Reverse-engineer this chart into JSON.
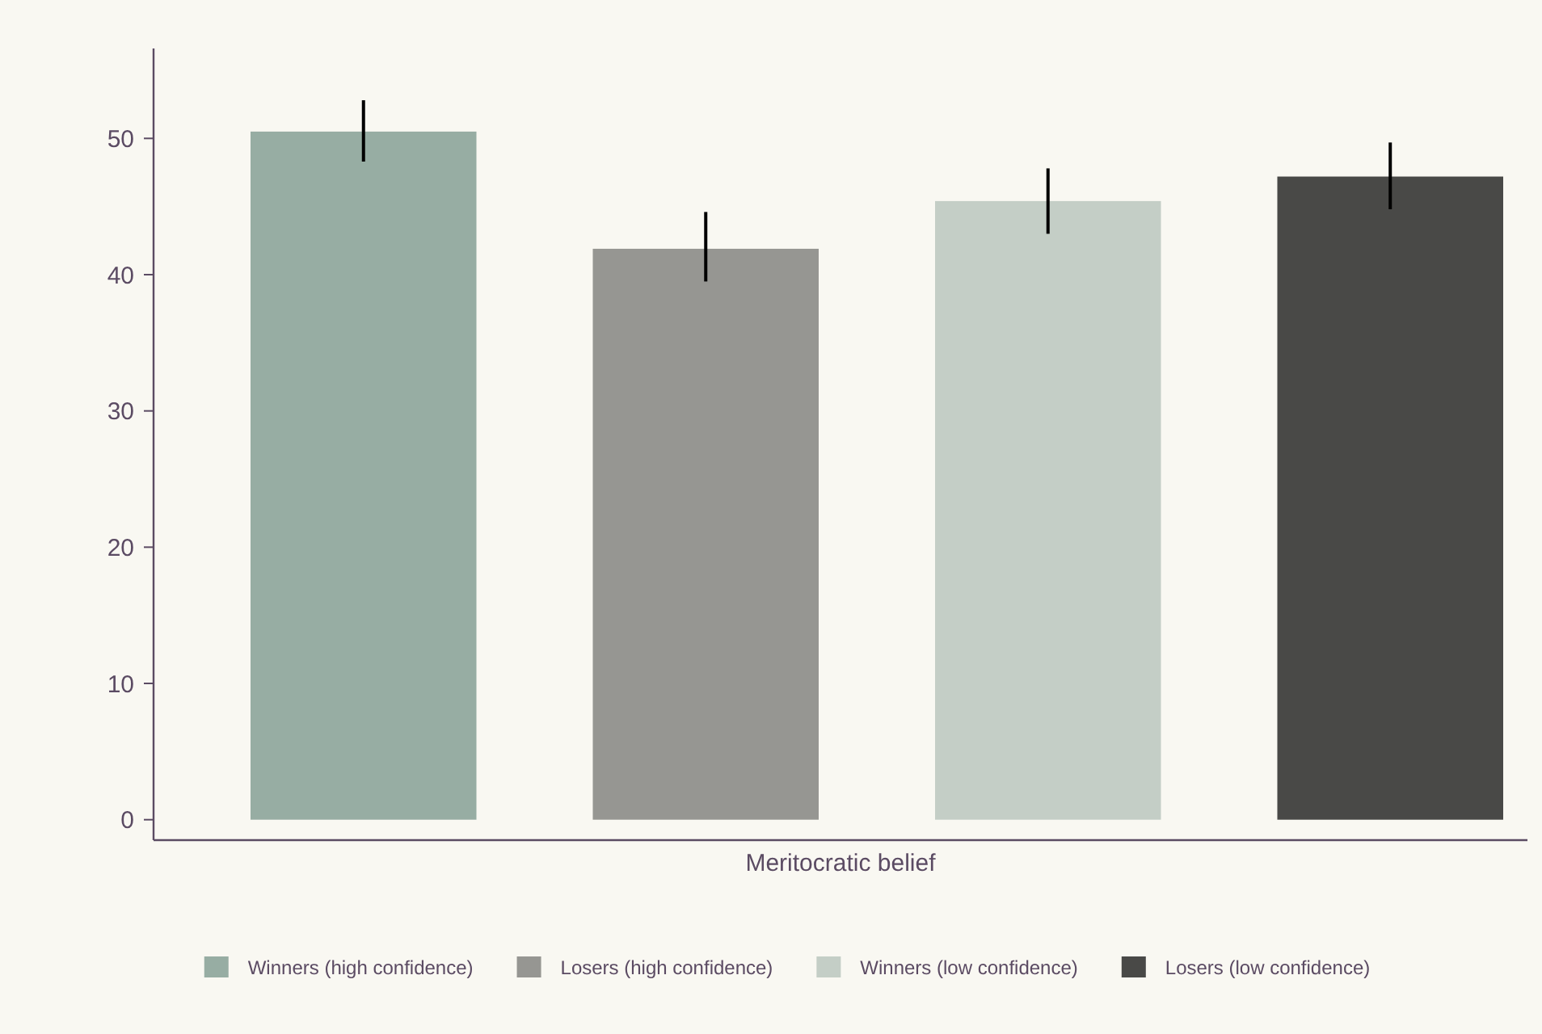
{
  "chart_data": {
    "type": "bar",
    "xlabel": "Meritocratic belief",
    "categories": [
      null
    ],
    "series": [
      {
        "name": "Winners (high confidence)",
        "color": "#97ada3",
        "values": [
          50.5
        ],
        "errors": [
          [
            48.3,
            52.8
          ]
        ]
      },
      {
        "name": "Losers (high confidence)",
        "color": "#969692",
        "values": [
          41.9
        ],
        "errors": [
          [
            39.5,
            44.6
          ]
        ]
      },
      {
        "name": "Winners (low confidence)",
        "color": "#c4cec6",
        "values": [
          45.4
        ],
        "errors": [
          [
            43.0,
            47.8
          ]
        ]
      },
      {
        "name": "Losers (low confidence)",
        "color": "#494947",
        "values": [
          47.2
        ],
        "errors": [
          [
            44.8,
            49.7
          ]
        ]
      }
    ],
    "ylim": [
      -1.5,
      56.6
    ],
    "yticks": [
      0,
      10,
      20,
      30,
      40,
      50
    ],
    "grid": false,
    "legend": "bottom"
  }
}
